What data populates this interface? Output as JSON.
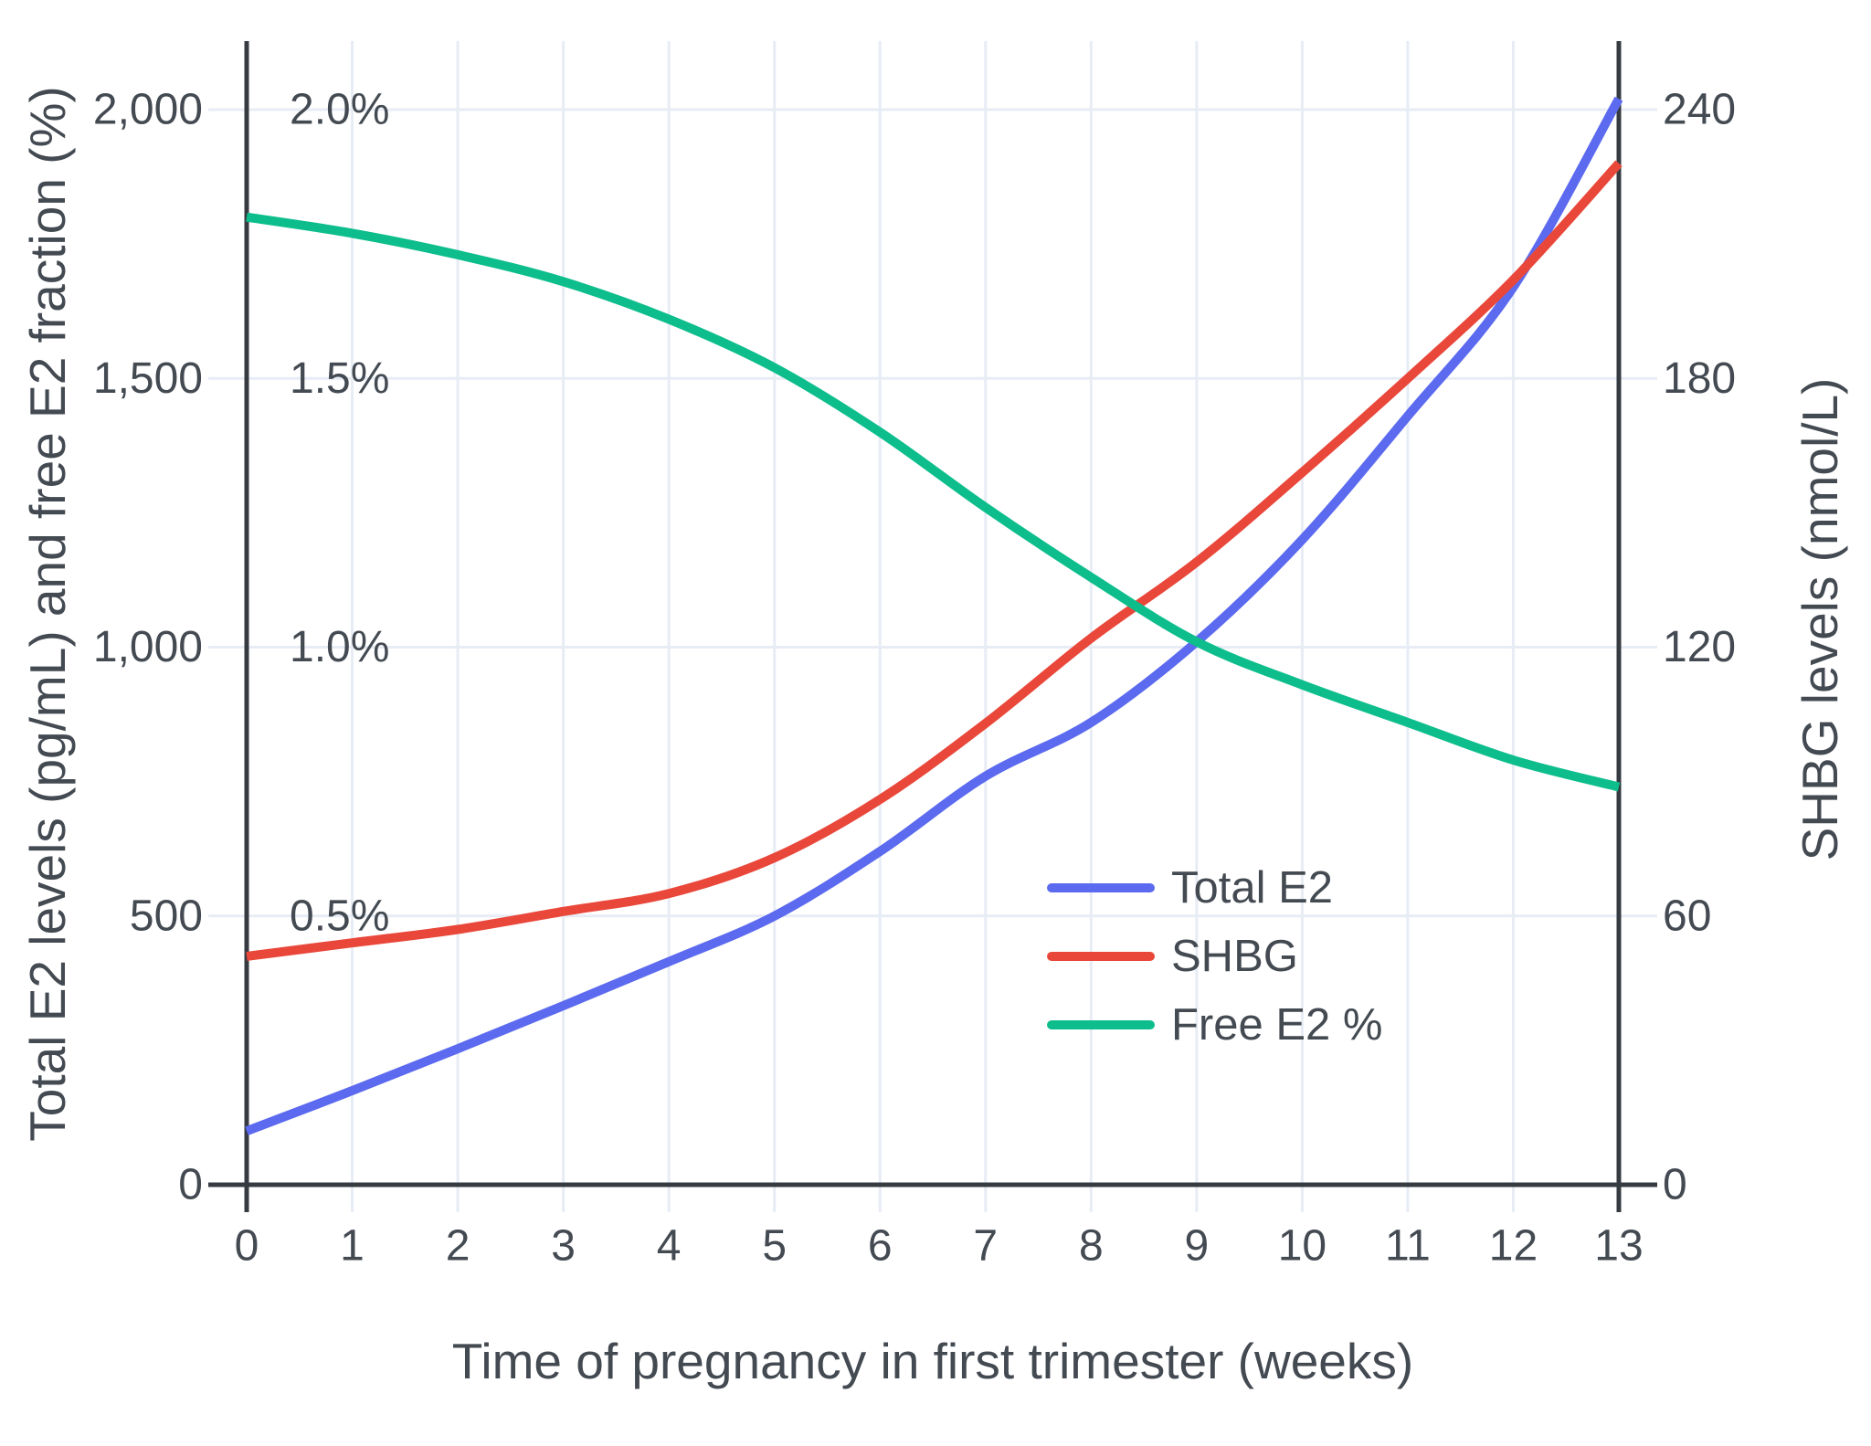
{
  "figure": {
    "left_axis": {
      "title": "Total E2 levels (pg/mL) and free E2 fraction (%)",
      "tick_labels": [
        "0",
        "500",
        "1,000",
        "1,500",
        "2,000"
      ],
      "tick_values": [
        0,
        500,
        1000,
        1500,
        2000
      ]
    },
    "inner_percent_axis": {
      "tick_labels": [
        "0.5%",
        "1.0%",
        "1.5%",
        "2.0%"
      ],
      "tick_values": [
        500,
        1000,
        1500,
        2000
      ]
    },
    "right_axis": {
      "title": "SHBG levels (nmol/L)",
      "tick_labels": [
        "0",
        "60",
        "120",
        "180",
        "240"
      ],
      "tick_values": [
        0,
        500,
        1000,
        1500,
        2000
      ]
    },
    "x_axis": {
      "title": "Time of pregnancy in first trimester (weeks)",
      "tick_labels": [
        "0",
        "1",
        "2",
        "3",
        "4",
        "5",
        "6",
        "7",
        "8",
        "9",
        "10",
        "11",
        "12",
        "13"
      ]
    },
    "legend": [
      {
        "label": "Total E2",
        "color": "#5b6aef"
      },
      {
        "label": "SHBG",
        "color": "#e9473a"
      },
      {
        "label": "Free E2 %",
        "color": "#0dbe8c"
      }
    ],
    "colors": {
      "grid": "#e7ecf5",
      "axis_line": "#363b42",
      "text": "#444a52",
      "background": "#ffffff"
    }
  },
  "chart_data": {
    "type": "line",
    "title": "",
    "xlabel": "Time of pregnancy in first trimester (weeks)",
    "ylabel_left": "Total E2 levels (pg/mL) and free E2 fraction (%)",
    "ylabel_right": "SHBG levels (nmol/L)",
    "x": [
      0,
      1,
      2,
      3,
      4,
      5,
      6,
      7,
      8,
      9,
      10,
      11,
      12,
      13
    ],
    "series": [
      {
        "name": "Total E2",
        "axis": "left",
        "units": "pg/mL",
        "color": "#5b6aef",
        "values": [
          100,
          175,
          253,
          333,
          415,
          500,
          620,
          760,
          860,
          1010,
          1200,
          1430,
          1670,
          2020
        ]
      },
      {
        "name": "SHBG",
        "axis": "right",
        "units": "nmol/L",
        "color": "#e9473a",
        "values": [
          51,
          54,
          57,
          61,
          65,
          73,
          86,
          103,
          122,
          139,
          159,
          180,
          202,
          228
        ]
      },
      {
        "name": "Free E2 %",
        "axis": "left-percent",
        "units": "%",
        "color": "#0dbe8c",
        "values": [
          1.8,
          1.77,
          1.73,
          1.68,
          1.61,
          1.52,
          1.4,
          1.26,
          1.13,
          1.01,
          0.93,
          0.86,
          0.79,
          0.74
        ]
      }
    ],
    "left_ylim": [
      0,
      2100
    ],
    "right_ylim": [
      0,
      252
    ],
    "percent_ylim": [
      0,
      2.1
    ],
    "grid": true,
    "legend_position": "inside-right-middle"
  }
}
